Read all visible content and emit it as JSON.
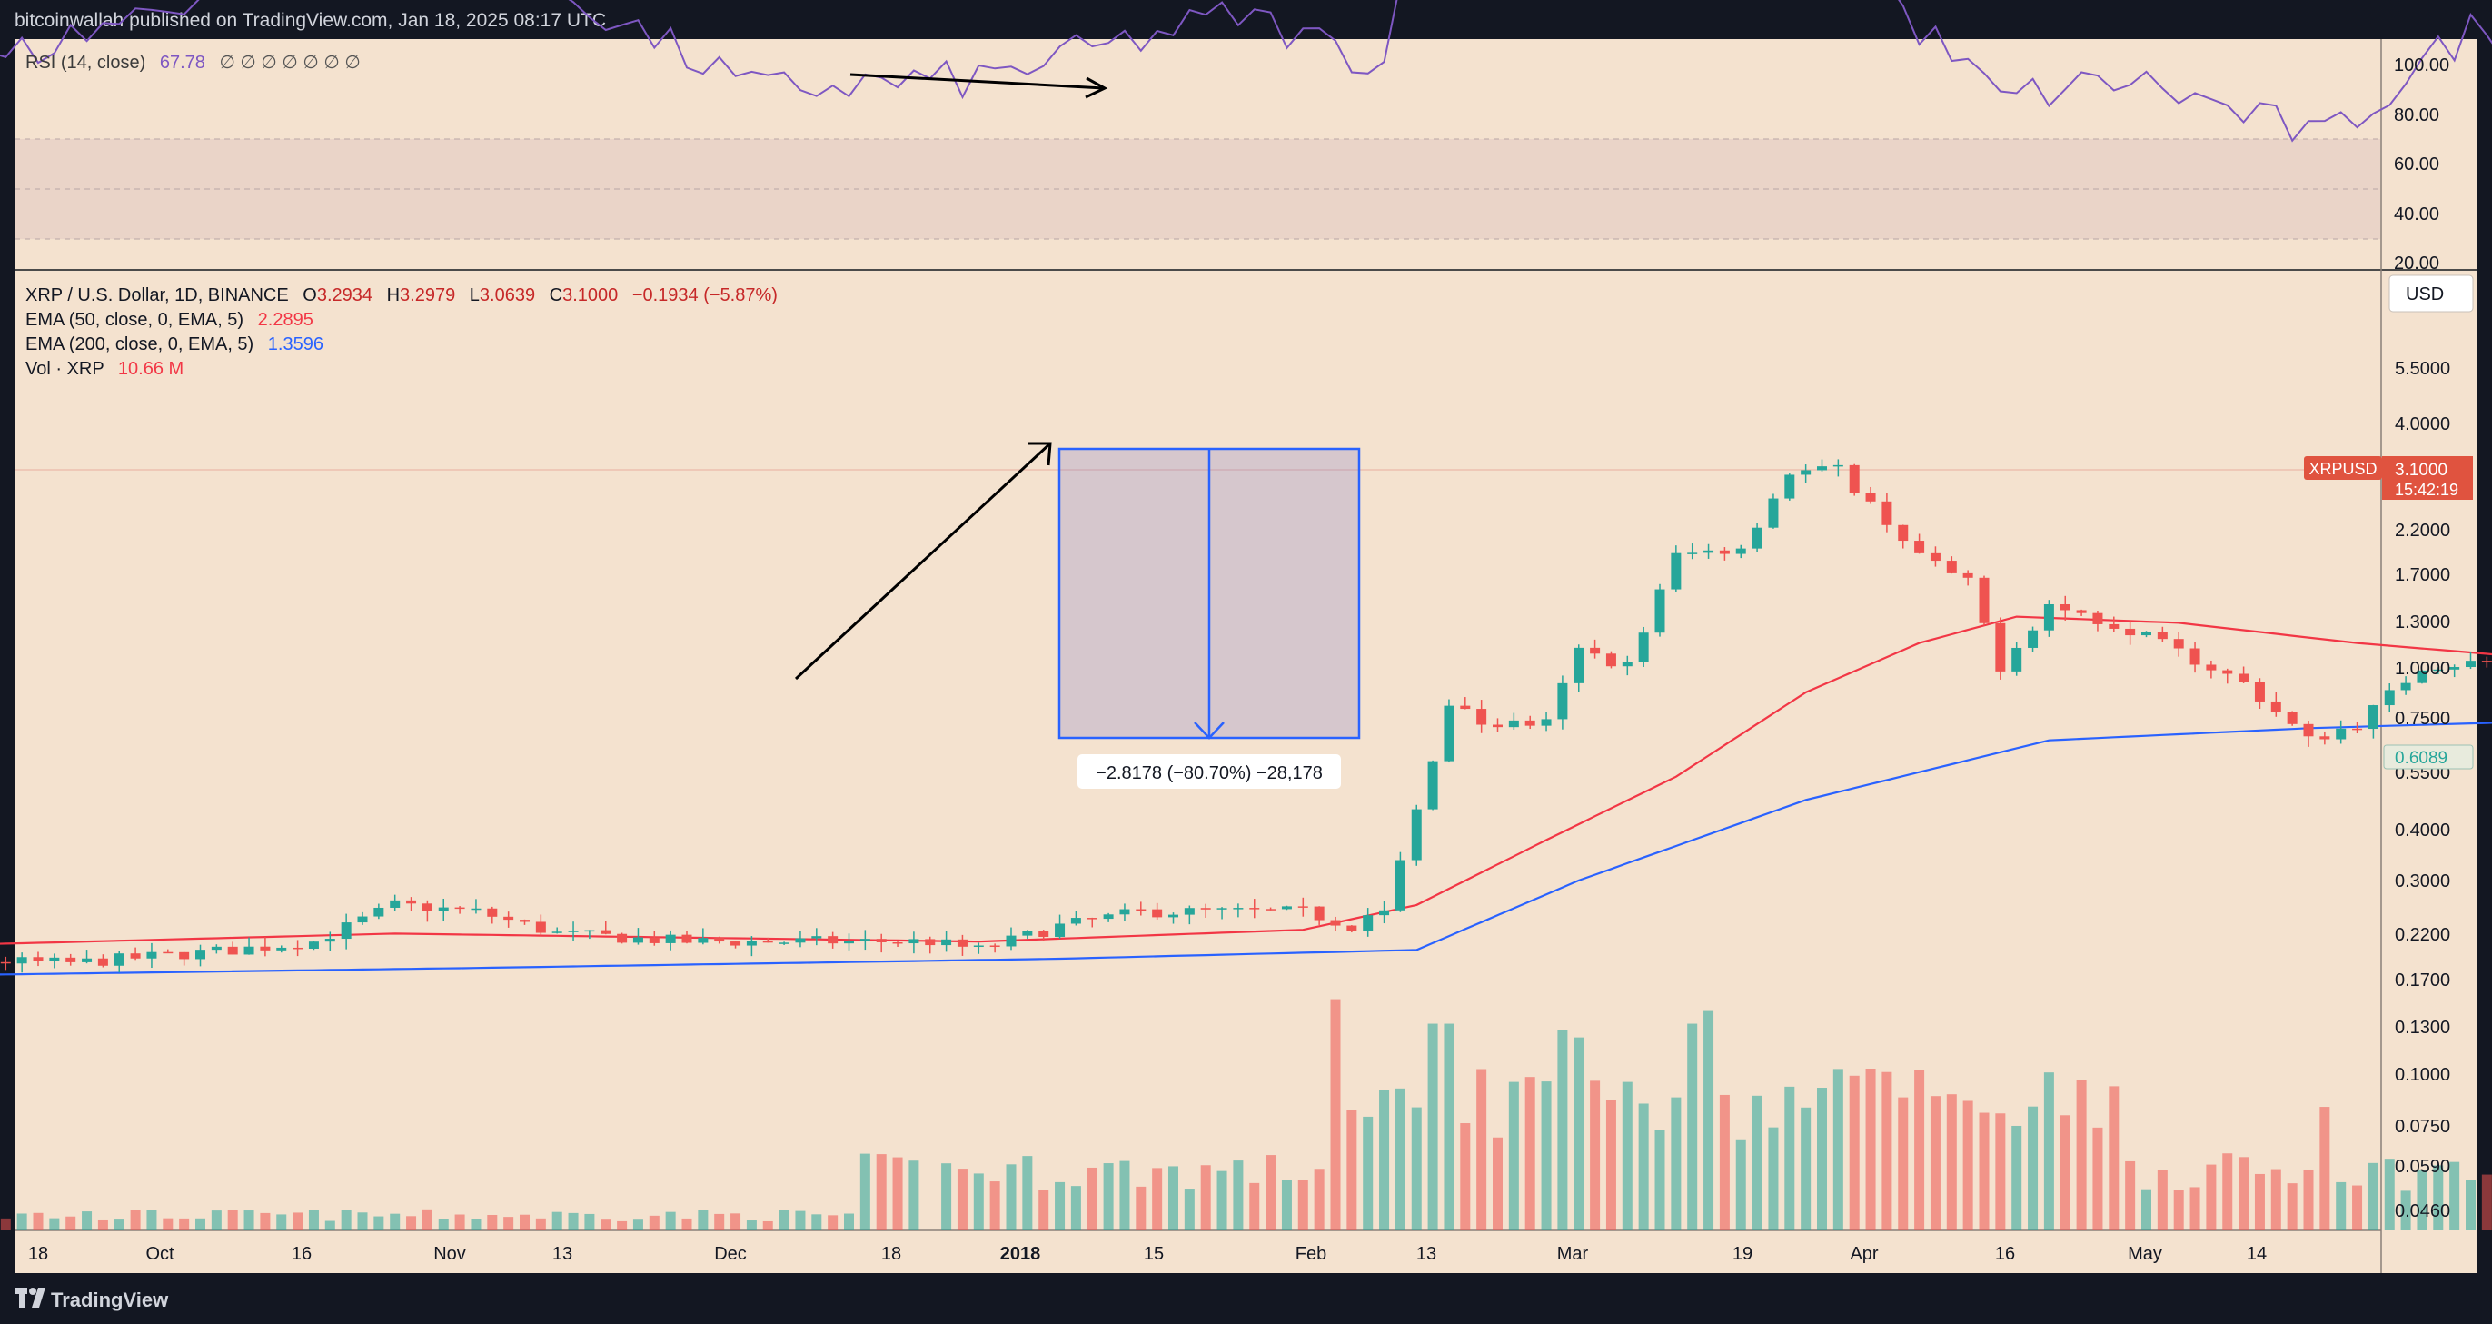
{
  "header": {
    "published": "bitcoinwallah published on TradingView.com, Jan 18, 2025 08:17 UTC"
  },
  "footer": {
    "logo_text": "TradingView"
  },
  "colors": {
    "background": "#F4E2CF",
    "frame": "#131722",
    "up": "#26A69A",
    "down": "#EF5350",
    "ema50": "#F23645",
    "ema200": "#2962FF",
    "rsi": "#7E57C2",
    "measure": "#2962FF"
  },
  "rsi_panel": {
    "legend_name": "RSI (14, close)",
    "legend_value": "67.78",
    "legend_extras": "∅ ∅ ∅ ∅ ∅ ∅ ∅",
    "ticks": [
      "100.00",
      "80.00",
      "60.00",
      "40.00",
      "20.00"
    ]
  },
  "main_panel": {
    "legend_symbol": "XRP / U.S. Dollar, 1D, BINANCE",
    "legend_ohlc": [
      {
        "key": "O",
        "value": "3.2934"
      },
      {
        "key": "H",
        "value": "3.2979"
      },
      {
        "key": "L",
        "value": "3.0639"
      },
      {
        "key": "C",
        "value": "3.1000"
      }
    ],
    "legend_change": "−0.1934 (−5.87%)",
    "ema50_label": "EMA (50, close, 0, EMA, 5)",
    "ema50_value": "2.2895",
    "ema200_label": "EMA (200, close, 0, EMA, 5)",
    "ema200_value": "1.3596",
    "vol_label": "Vol · XRP",
    "vol_value": "10.66 M",
    "currency": "USD",
    "price_ticks": [
      "5.5000",
      "4.0000",
      "2.2000",
      "1.7000",
      "1.3000",
      "1.0000",
      "0.7500",
      "0.5500",
      "0.4000",
      "0.3000",
      "0.2200",
      "0.1700",
      "0.1300",
      "0.1000",
      "0.0750",
      "0.0590",
      "0.0460"
    ],
    "price_tag": {
      "symbol": "XRPUSD",
      "price": "3.1000",
      "countdown": "15:42:19"
    },
    "ema200_tag": "0.6089",
    "measure_label": "−2.8178 (−80.70%) −28,178"
  },
  "time_axis": [
    "18",
    "Oct",
    "16",
    "Nov",
    "13",
    "Dec",
    "18",
    "2018",
    "15",
    "Feb",
    "13",
    "Mar",
    "19",
    "Apr",
    "16",
    "May",
    "14"
  ],
  "chart_data": {
    "type": "candlestick",
    "symbol": "XRP / U.S. Dollar, 1D, BINANCE",
    "y_scale": "log",
    "ylim": [
      0.04,
      7.5
    ],
    "annotations": [
      "−2.8178 (−80.70%) −28,178"
    ],
    "anchors": [
      [
        "2017-09-01",
        0.2
      ],
      [
        "2017-09-10",
        0.19
      ],
      [
        "2017-09-20",
        0.185
      ],
      [
        "2017-09-30",
        0.2
      ],
      [
        "2017-10-05",
        0.21
      ],
      [
        "2017-10-10",
        0.26
      ],
      [
        "2017-10-15",
        0.25
      ],
      [
        "2017-10-20",
        0.22
      ],
      [
        "2017-10-28",
        0.21
      ],
      [
        "2017-11-05",
        0.21
      ],
      [
        "2017-11-12",
        0.21
      ],
      [
        "2017-11-15",
        0.2
      ],
      [
        "2017-11-20",
        0.23
      ],
      [
        "2017-11-25",
        0.25
      ],
      [
        "2017-12-05",
        0.25
      ],
      [
        "2017-12-08",
        0.23
      ],
      [
        "2017-12-10",
        0.25
      ],
      [
        "2017-12-12",
        0.45
      ],
      [
        "2017-12-14",
        0.85
      ],
      [
        "2017-12-16",
        0.75
      ],
      [
        "2017-12-20",
        0.75
      ],
      [
        "2017-12-22",
        1.15
      ],
      [
        "2017-12-25",
        1.05
      ],
      [
        "2017-12-28",
        2.0
      ],
      [
        "2018-01-01",
        2.1
      ],
      [
        "2018-01-04",
        3.25
      ],
      [
        "2018-01-07",
        3.3
      ],
      [
        "2018-01-12",
        2.0
      ],
      [
        "2018-01-15",
        1.7
      ],
      [
        "2018-01-17",
        1.05
      ],
      [
        "2018-01-20",
        1.5
      ],
      [
        "2018-01-25",
        1.3
      ],
      [
        "2018-02-01",
        0.95
      ],
      [
        "2018-02-05",
        0.68
      ],
      [
        "2018-02-08",
        0.75
      ],
      [
        "2018-02-12",
        1.05
      ],
      [
        "2018-02-20",
        1.1
      ],
      [
        "2018-02-25",
        0.9
      ],
      [
        "2018-03-05",
        0.88
      ],
      [
        "2018-03-10",
        0.82
      ],
      [
        "2018-03-15",
        0.68
      ],
      [
        "2018-03-20",
        0.65
      ],
      [
        "2018-03-28",
        0.55
      ],
      [
        "2018-04-05",
        0.5
      ],
      [
        "2018-04-10",
        0.52
      ],
      [
        "2018-04-14",
        0.65
      ],
      [
        "2018-04-19",
        0.75
      ],
      [
        "2018-04-22",
        0.9
      ],
      [
        "2018-04-30",
        0.85
      ],
      [
        "2018-05-05",
        0.88
      ],
      [
        "2018-05-10",
        0.8
      ],
      [
        "2018-05-15",
        0.7
      ],
      [
        "2018-05-20",
        0.68
      ],
      [
        "2018-05-25",
        0.61
      ]
    ],
    "ema50_points": [
      [
        "2017-09-01",
        0.2
      ],
      [
        "2017-10-10",
        0.22
      ],
      [
        "2017-11-15",
        0.21
      ],
      [
        "2017-12-05",
        0.225
      ],
      [
        "2017-12-12",
        0.26
      ],
      [
        "2017-12-20",
        0.38
      ],
      [
        "2017-12-28",
        0.55
      ],
      [
        "2018-01-05",
        0.9
      ],
      [
        "2018-01-12",
        1.2
      ],
      [
        "2018-01-18",
        1.4
      ],
      [
        "2018-01-28",
        1.35
      ],
      [
        "2018-02-08",
        1.2
      ],
      [
        "2018-02-25",
        1.05
      ],
      [
        "2018-03-15",
        0.92
      ],
      [
        "2018-04-05",
        0.78
      ],
      [
        "2018-04-15",
        0.7
      ],
      [
        "2018-04-25",
        0.74
      ],
      [
        "2018-05-10",
        0.77
      ],
      [
        "2018-05-25",
        0.73
      ]
    ],
    "ema200_points": [
      [
        "2017-09-01",
        0.17
      ],
      [
        "2017-10-15",
        0.18
      ],
      [
        "2017-11-20",
        0.19
      ],
      [
        "2017-12-12",
        0.2
      ],
      [
        "2017-12-22",
        0.3
      ],
      [
        "2018-01-05",
        0.48
      ],
      [
        "2018-01-20",
        0.68
      ],
      [
        "2018-02-05",
        0.73
      ],
      [
        "2018-03-01",
        0.78
      ],
      [
        "2018-04-01",
        0.75
      ],
      [
        "2018-05-10",
        0.74
      ],
      [
        "2018-05-25",
        0.72
      ]
    ],
    "rsi_anchors": [
      [
        "2017-09-01",
        42
      ],
      [
        "2017-09-15",
        45
      ],
      [
        "2017-10-10",
        72
      ],
      [
        "2017-10-20",
        60
      ],
      [
        "2017-11-01",
        40
      ],
      [
        "2017-11-15",
        42
      ],
      [
        "2017-12-01",
        55
      ],
      [
        "2017-12-10",
        45
      ],
      [
        "2017-12-13",
        92
      ],
      [
        "2017-12-18",
        75
      ],
      [
        "2017-12-22",
        88
      ],
      [
        "2017-12-27",
        78
      ],
      [
        "2018-01-01",
        90
      ],
      [
        "2018-01-06",
        85
      ],
      [
        "2018-01-11",
        55
      ],
      [
        "2018-01-17",
        38
      ],
      [
        "2018-01-25",
        42
      ],
      [
        "2018-02-06",
        30
      ],
      [
        "2018-02-15",
        52
      ],
      [
        "2018-02-25",
        40
      ],
      [
        "2018-03-05",
        48
      ],
      [
        "2018-03-15",
        38
      ],
      [
        "2018-03-30",
        28
      ],
      [
        "2018-04-05",
        32
      ],
      [
        "2018-04-12",
        62
      ],
      [
        "2018-04-22",
        77
      ],
      [
        "2018-04-30",
        63
      ],
      [
        "2018-05-10",
        68
      ],
      [
        "2018-05-18",
        40
      ],
      [
        "2018-05-25",
        38
      ]
    ],
    "volume_spikes": [
      [
        "2017-11-12",
        0.033
      ],
      [
        "2017-12-07",
        0.15
      ],
      [
        "2017-12-13",
        0.13
      ],
      [
        "2017-12-14",
        0.13
      ],
      [
        "2017-12-21",
        0.125
      ],
      [
        "2017-12-22",
        0.12
      ],
      [
        "2017-12-29",
        0.13
      ],
      [
        "2017-12-30",
        0.14
      ],
      [
        "2018-01-04",
        0.09
      ],
      [
        "2018-01-09",
        0.1
      ],
      [
        "2018-01-17",
        0.077
      ],
      [
        "2018-02-06",
        0.08
      ],
      [
        "2018-03-04",
        0.093
      ],
      [
        "2018-04-12",
        0.077
      ],
      [
        "2018-04-19",
        0.088
      ],
      [
        "2018-04-22",
        0.093
      ],
      [
        "2018-05-05",
        0.075
      ]
    ]
  }
}
